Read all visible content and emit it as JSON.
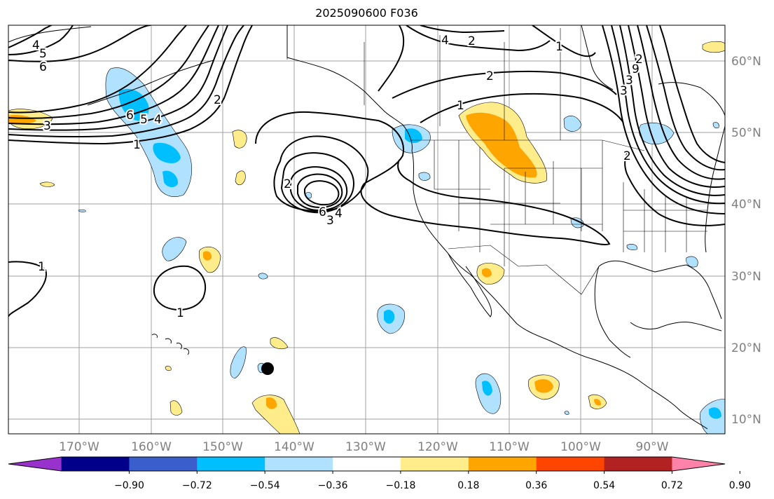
{
  "title": "2025090600 F036",
  "map": {
    "lon_labels": [
      "170°W",
      "160°W",
      "150°W",
      "140°W",
      "130°W",
      "120°W",
      "110°W",
      "100°W",
      "90°W"
    ],
    "lat_labels": [
      "60°N",
      "50°N",
      "40°N",
      "30°N",
      "20°N",
      "10°N"
    ],
    "contour_labels": [
      "4",
      "5",
      "6",
      "1",
      "2",
      "3",
      "6",
      "5",
      "4",
      "2",
      "4",
      "3",
      "2",
      "1",
      "2",
      "6",
      "4",
      "3",
      "1",
      "2",
      "9",
      "3",
      "2",
      "1",
      "1"
    ],
    "colors": {
      "contour": "#000000",
      "coast": "#000000",
      "grid": "#a0a0a0"
    }
  },
  "colorbar": {
    "colors": [
      "#9932cc",
      "#00008b",
      "#3a5fcd",
      "#00bfff",
      "#b0e2ff",
      "#ffffff",
      "#ffec8b",
      "#ffa500",
      "#ff4500",
      "#b22222",
      "#ff82ab"
    ],
    "ticks": [
      "−0.90",
      "−0.72",
      "−0.54",
      "−0.36",
      "−0.18",
      "0.18",
      "0.36",
      "0.54",
      "0.72",
      "0.90"
    ],
    "extend": "both"
  }
}
